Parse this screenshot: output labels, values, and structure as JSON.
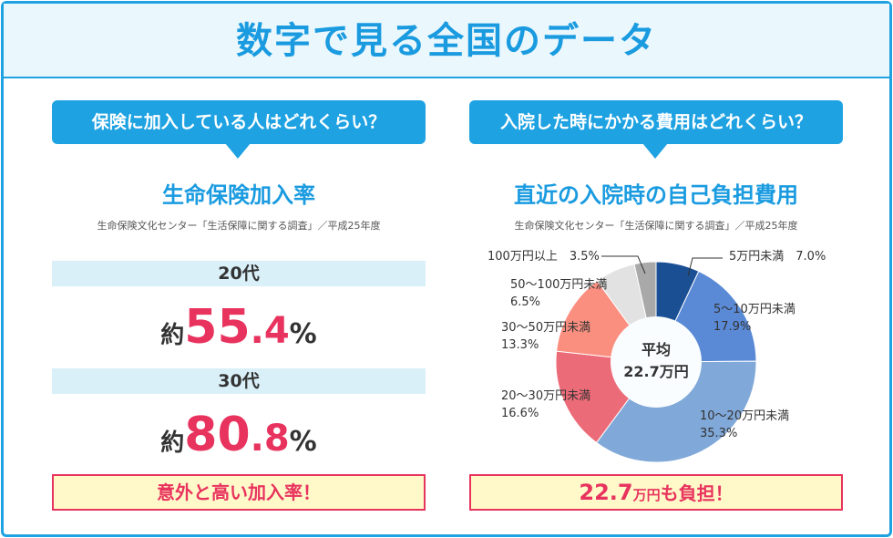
{
  "title": "数字で見る全国のデータ",
  "left": {
    "question": "保険に加入している人はどれくらい？",
    "heading": "生命保険加入率",
    "source": "生命保険文化センター「生活保障に関する調査」／平成25年度",
    "groups": [
      {
        "age": "20代",
        "prefix": "約",
        "int": "55",
        "dec": ".4",
        "unit": "%"
      },
      {
        "age": "30代",
        "prefix": "約",
        "int": "80",
        "dec": ".8",
        "unit": "%"
      }
    ],
    "footer": "意外と高い加入率！"
  },
  "right": {
    "question": "入院した時にかかる費用はどれくらい？",
    "heading": "直近の入院時の自己負担費用",
    "source": "生命保険文化センター「生活保障に関する調査」／平成25年度",
    "center_label": "平均",
    "center_value": "22.7万円",
    "footer": {
      "num": "22.7",
      "unit": "万円",
      "rest": "も負担！"
    }
  },
  "chart_data": {
    "type": "pie",
    "donut": true,
    "categories": [
      "5万円未満",
      "5〜10万円未満",
      "10〜20万円未満",
      "20〜30万円未満",
      "30〜50万円未満",
      "50〜100万円未満",
      "100万円以上"
    ],
    "values": [
      7.0,
      17.9,
      35.3,
      16.6,
      13.3,
      6.5,
      3.5
    ],
    "value_labels": [
      "7.0%",
      "17.9%",
      "35.3%",
      "16.6%",
      "13.3%",
      "6.5%",
      "3.5%"
    ],
    "colors": [
      "#1a4f94",
      "#5a8ad6",
      "#80a8d8",
      "#ec6b78",
      "#fa8f80",
      "#e2e2e2",
      "#a9a9a9"
    ]
  }
}
